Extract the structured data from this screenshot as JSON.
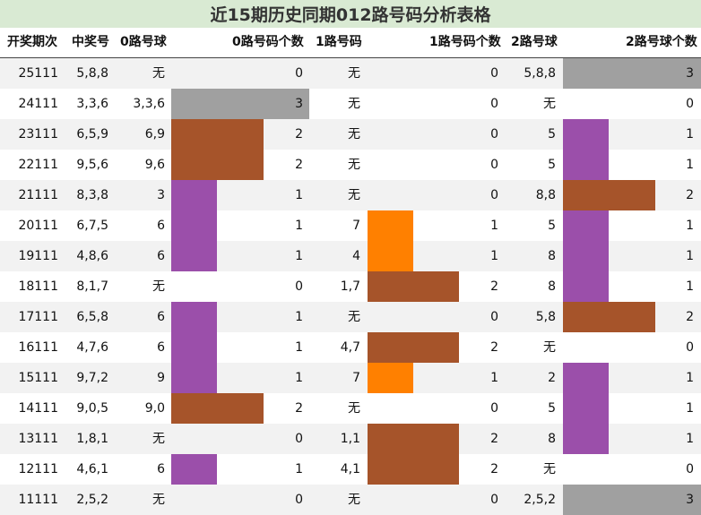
{
  "title": "近15期历史同期012路号码分析表格",
  "headers": [
    "开奖期次",
    "中奖号",
    "0路号球",
    "0路号码个数",
    "1路号码",
    "1路号码个数",
    "2路号球",
    "2路号球个数"
  ],
  "bar_max": 3,
  "count_colors": {
    "1": "#9b4faa",
    "2": "#a6542a",
    "3": "#a0a0a0"
  },
  "col1_count1_color": "#ff8000",
  "rows": [
    {
      "period": "25111",
      "numbers": "5,8,8",
      "zero": "无",
      "zero_count": 0,
      "one": "无",
      "one_count": 0,
      "two": "5,8,8",
      "two_count": 3
    },
    {
      "period": "24111",
      "numbers": "3,3,6",
      "zero": "3,3,6",
      "zero_count": 3,
      "one": "无",
      "one_count": 0,
      "two": "无",
      "two_count": 0
    },
    {
      "period": "23111",
      "numbers": "6,5,9",
      "zero": "6,9",
      "zero_count": 2,
      "one": "无",
      "one_count": 0,
      "two": "5",
      "two_count": 1
    },
    {
      "period": "22111",
      "numbers": "9,5,6",
      "zero": "9,6",
      "zero_count": 2,
      "one": "无",
      "one_count": 0,
      "two": "5",
      "two_count": 1
    },
    {
      "period": "21111",
      "numbers": "8,3,8",
      "zero": "3",
      "zero_count": 1,
      "one": "无",
      "one_count": 0,
      "two": "8,8",
      "two_count": 2
    },
    {
      "period": "20111",
      "numbers": "6,7,5",
      "zero": "6",
      "zero_count": 1,
      "one": "7",
      "one_count": 1,
      "two": "5",
      "two_count": 1
    },
    {
      "period": "19111",
      "numbers": "4,8,6",
      "zero": "6",
      "zero_count": 1,
      "one": "4",
      "one_count": 1,
      "two": "8",
      "two_count": 1
    },
    {
      "period": "18111",
      "numbers": "8,1,7",
      "zero": "无",
      "zero_count": 0,
      "one": "1,7",
      "one_count": 2,
      "two": "8",
      "two_count": 1
    },
    {
      "period": "17111",
      "numbers": "6,5,8",
      "zero": "6",
      "zero_count": 1,
      "one": "无",
      "one_count": 0,
      "two": "5,8",
      "two_count": 2
    },
    {
      "period": "16111",
      "numbers": "4,7,6",
      "zero": "6",
      "zero_count": 1,
      "one": "4,7",
      "one_count": 2,
      "two": "无",
      "two_count": 0
    },
    {
      "period": "15111",
      "numbers": "9,7,2",
      "zero": "9",
      "zero_count": 1,
      "one": "7",
      "one_count": 1,
      "two": "2",
      "two_count": 1
    },
    {
      "period": "14111",
      "numbers": "9,0,5",
      "zero": "9,0",
      "zero_count": 2,
      "one": "无",
      "one_count": 0,
      "two": "5",
      "two_count": 1
    },
    {
      "period": "13111",
      "numbers": "1,8,1",
      "zero": "无",
      "zero_count": 0,
      "one": "1,1",
      "one_count": 2,
      "two": "8",
      "two_count": 1
    },
    {
      "period": "12111",
      "numbers": "4,6,1",
      "zero": "6",
      "zero_count": 1,
      "one": "4,1",
      "one_count": 2,
      "two": "无",
      "two_count": 0
    },
    {
      "period": "11111",
      "numbers": "2,5,2",
      "zero": "无",
      "zero_count": 0,
      "one": "无",
      "one_count": 0,
      "two": "2,5,2",
      "two_count": 3
    }
  ]
}
